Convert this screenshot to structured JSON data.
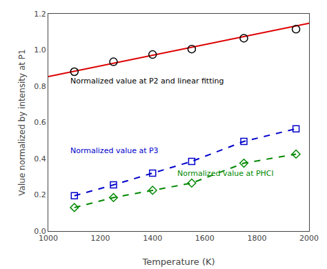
{
  "chart_data": {
    "type": "line",
    "xlabel": "Temperature (K)",
    "ylabel": "Value normalized by intensity at P1",
    "xlim": [
      1000,
      2000
    ],
    "ylim": [
      0,
      1.2
    ],
    "xticks": [
      1000,
      1200,
      1400,
      1600,
      1800,
      2000
    ],
    "yticks": [
      {
        "value": 0,
        "label": "0.0"
      },
      0.2,
      0.4,
      0.6,
      0.8,
      {
        "value": 1.0,
        "label": "1.0"
      },
      1.2
    ],
    "grid": false,
    "series": [
      {
        "x": [
          1000,
          2000
        ],
        "values": [
          0.853,
          1.148
        ],
        "color": "#dd0000",
        "marker": "none",
        "line_style": "solid"
      },
      {
        "x": [
          1100,
          1250,
          1400,
          1550,
          1750,
          1950
        ],
        "values": [
          0.88,
          0.935,
          0.975,
          1.005,
          1.065,
          1.115
        ],
        "color": "black",
        "marker": "circle",
        "line_style": "none"
      },
      {
        "x": [
          1100,
          1250,
          1400,
          1550,
          1750,
          1950
        ],
        "values": [
          0.195,
          0.255,
          0.32,
          0.385,
          0.495,
          0.565
        ],
        "color": "#0000cc",
        "marker": "square",
        "line_style": "dashed"
      },
      {
        "x": [
          1100,
          1250,
          1400,
          1550,
          1750,
          1950
        ],
        "values": [
          0.13,
          0.185,
          0.225,
          0.265,
          0.375,
          0.425
        ],
        "color": "#008800",
        "marker": "diamond",
        "line_style": "dashed"
      }
    ],
    "annotations": [
      {
        "text": "Normalized value at P2 and linear fitting",
        "x": 1080,
        "y": 0.795,
        "color": "black"
      },
      {
        "text": "Normalized value at P3",
        "x": 1080,
        "y": 0.41,
        "color": "#0000cc"
      },
      {
        "text": "Normalized value at PHCl",
        "x": 1490,
        "y": 0.285,
        "color": "#008800"
      }
    ]
  }
}
